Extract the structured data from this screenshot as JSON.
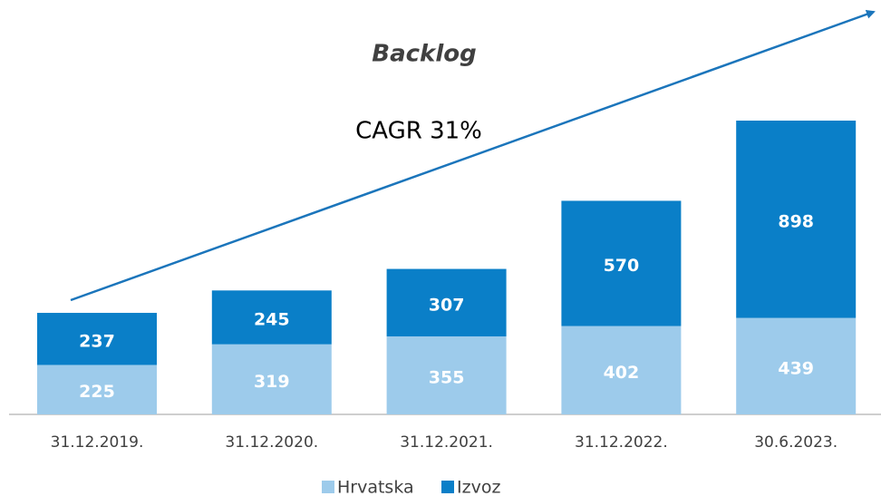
{
  "chart_data": {
    "type": "stacked_bar",
    "title": "Backlog",
    "annotation": "CAGR 31%",
    "categories": [
      "31.12.2019.",
      "31.12.2020.",
      "31.12.2021.",
      "31.12.2022.",
      "30.6.2023."
    ],
    "series": [
      {
        "name": "Hrvatska",
        "color": "#9dcbeb",
        "values": [
          225,
          319,
          355,
          402,
          439
        ]
      },
      {
        "name": "Izvoz",
        "color": "#0a7fc8",
        "values": [
          237,
          245,
          307,
          570,
          898
        ]
      }
    ]
  }
}
